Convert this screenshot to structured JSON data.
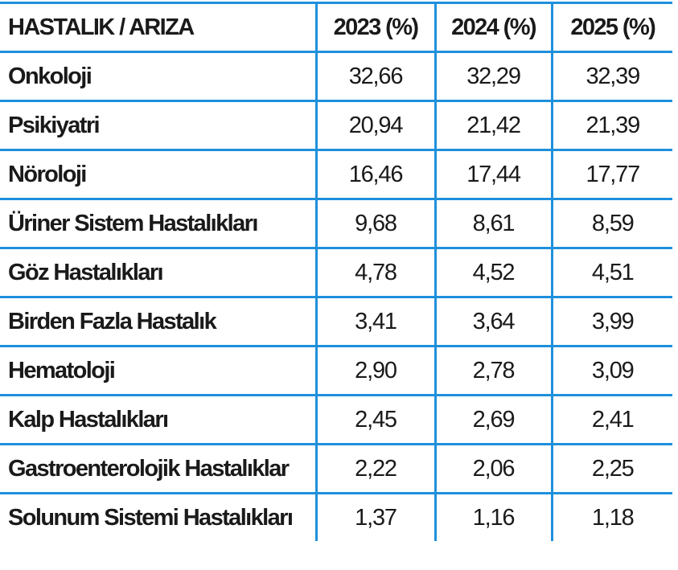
{
  "headers": [
    "HASTALIK / ARIZA",
    "2023 (%)",
    "2024 (%)",
    "2025 (%)"
  ],
  "rows": [
    [
      "Onkoloji",
      "32,66",
      "32,29",
      "32,39"
    ],
    [
      "Psikiyatri",
      "20,94",
      "21,42",
      "21,39"
    ],
    [
      "Nöroloji",
      "16,46",
      "17,44",
      "17,77"
    ],
    [
      "Üriner Sistem Hastalıkları",
      "9,68",
      "8,61",
      "8,59"
    ],
    [
      "Göz Hastalıkları",
      "4,78",
      "4,52",
      "4,51"
    ],
    [
      "Birden Fazla Hastalık",
      "3,41",
      "3,64",
      "3,99"
    ],
    [
      "Hematoloji",
      "2,90",
      "2,78",
      "3,09"
    ],
    [
      "Kalp Hastalıkları",
      "2,45",
      "2,69",
      "2,41"
    ],
    [
      "Gastroenterolojik Hastalıklar",
      "2,22",
      "2,06",
      "2,25"
    ],
    [
      "Solunum Sistemi Hastalıkları",
      "1,37",
      "1,16",
      "1,18"
    ]
  ],
  "colors": {
    "grid": "#1e90dc",
    "text": "#1a1a1a"
  }
}
